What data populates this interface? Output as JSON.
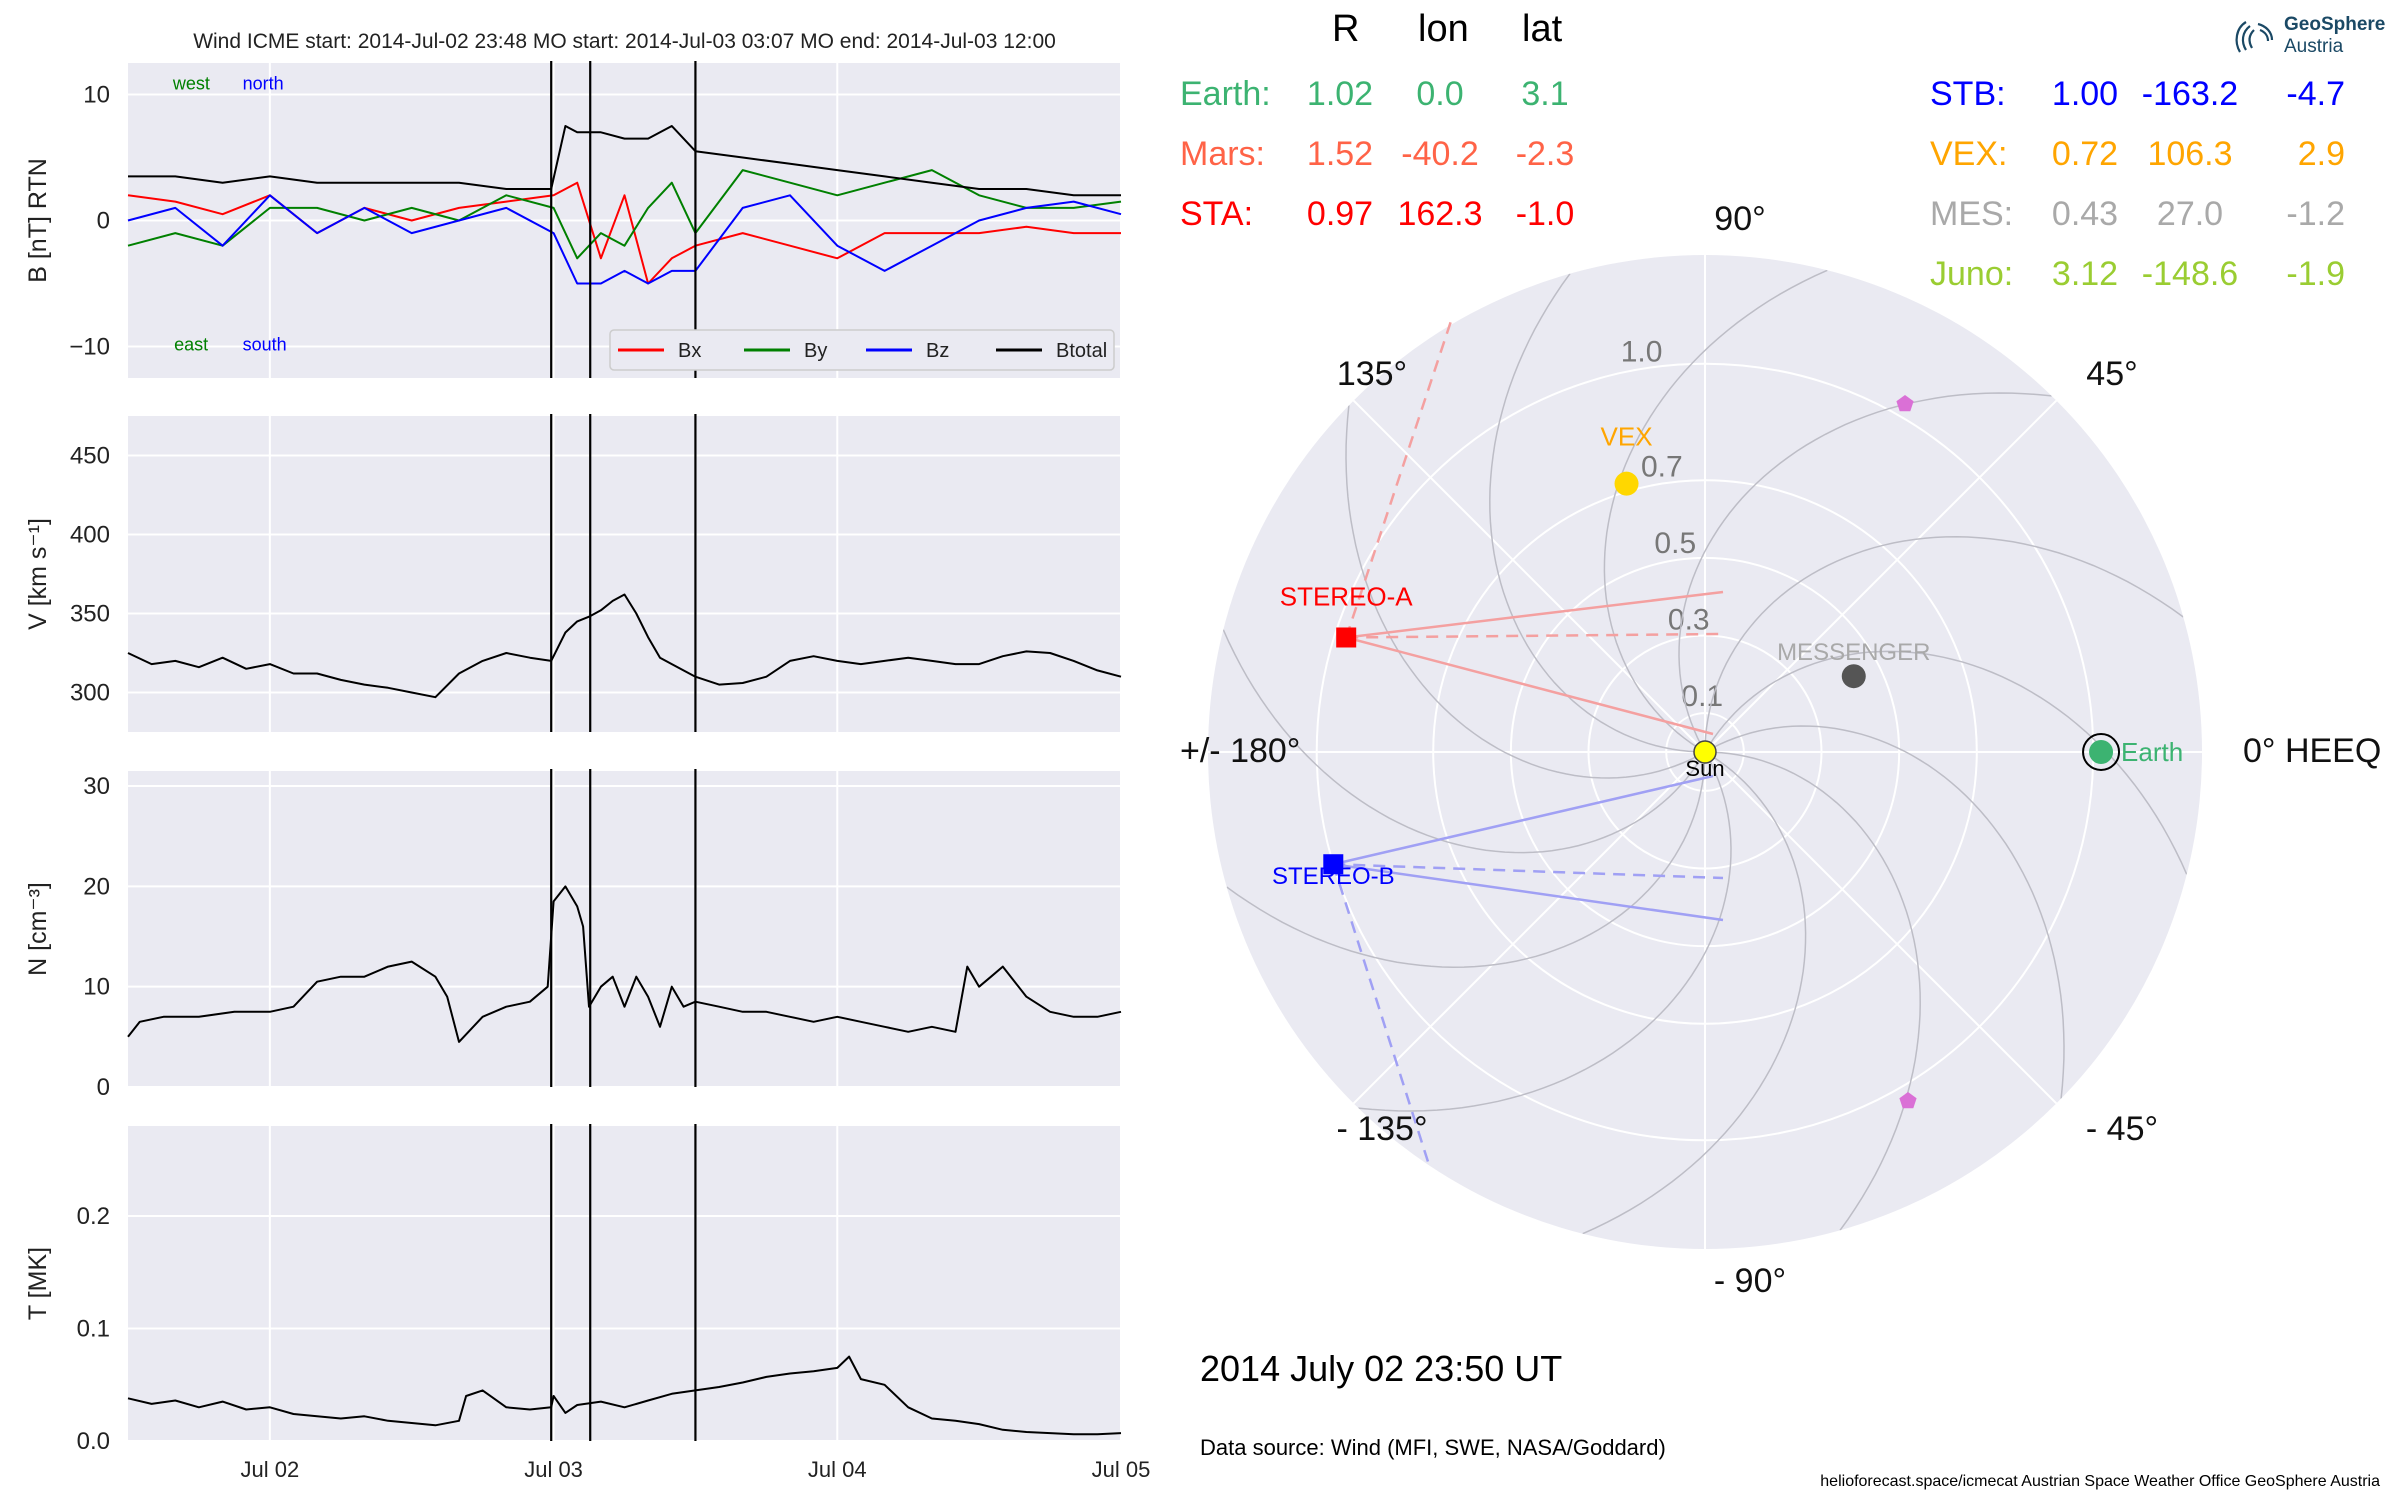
{
  "chart_data": [
    {
      "type": "line",
      "title": "Wind    ICME start: 2014-Jul-02 23:48   MO start: 2014-Jul-03 03:07   MO end: 2014-Jul-03 12:00",
      "ylabel": "B [nT] RTN",
      "ylim": [
        -12.5,
        12.5
      ],
      "yticks": [
        10,
        0,
        -10
      ],
      "ytick_labels": [
        "10",
        "0",
        "−10"
      ],
      "xlim": [
        0,
        84
      ],
      "grid": true,
      "legend_position": "lower-right",
      "annotations": [
        {
          "text": "west",
          "color": "#008000",
          "x": 3.8,
          "y": 10.4
        },
        {
          "text": "north",
          "color": "#0000ff",
          "x": 9.7,
          "y": 10.4
        },
        {
          "text": "east",
          "color": "#008000",
          "x": 3.9,
          "y": -10.3
        },
        {
          "text": "south",
          "color": "#0000ff",
          "x": 9.7,
          "y": -10.3
        }
      ],
      "event_lines": [
        35.8,
        39.1,
        48.0
      ],
      "series": [
        {
          "name": "Bx",
          "color": "#ff0000",
          "x": [
            0,
            4,
            8,
            12,
            16,
            20,
            24,
            28,
            32,
            36,
            38,
            40,
            42,
            44,
            46,
            48,
            52,
            56,
            60,
            64,
            68,
            72,
            76,
            80,
            84
          ],
          "values": [
            2,
            1.5,
            0.5,
            2,
            -1,
            1,
            0,
            1,
            1.5,
            2,
            3,
            -3,
            2,
            -5,
            -3,
            -2,
            -1,
            -2,
            -3,
            -1,
            -1,
            -1,
            -0.5,
            -1,
            -1
          ]
        },
        {
          "name": "By",
          "color": "#008000",
          "x": [
            0,
            4,
            8,
            12,
            16,
            20,
            24,
            28,
            32,
            36,
            38,
            40,
            42,
            44,
            46,
            48,
            52,
            56,
            60,
            64,
            68,
            72,
            76,
            80,
            84
          ],
          "values": [
            -2,
            -1,
            -2,
            1,
            1,
            0,
            1,
            0,
            2,
            1,
            -3,
            -1,
            -2,
            1,
            3,
            -1,
            4,
            3,
            2,
            3,
            4,
            2,
            1,
            1,
            1.5
          ]
        },
        {
          "name": "Bz",
          "color": "#0000ff",
          "x": [
            0,
            4,
            8,
            12,
            16,
            20,
            24,
            28,
            32,
            36,
            38,
            40,
            42,
            44,
            46,
            48,
            52,
            56,
            60,
            64,
            68,
            72,
            76,
            80,
            84
          ],
          "values": [
            0,
            1,
            -2,
            2,
            -1,
            1,
            -1,
            0,
            1,
            -1,
            -5,
            -5,
            -4,
            -5,
            -4,
            -4,
            1,
            2,
            -2,
            -4,
            -2,
            0,
            1,
            1.5,
            0.5
          ]
        },
        {
          "name": "Btotal",
          "color": "#000000",
          "x": [
            0,
            4,
            8,
            12,
            16,
            20,
            24,
            28,
            32,
            35.8,
            37,
            38,
            40,
            42,
            44,
            46,
            48,
            52,
            56,
            60,
            64,
            68,
            72,
            76,
            80,
            84
          ],
          "values": [
            3.5,
            3.5,
            3,
            3.5,
            3,
            3,
            3,
            3,
            2.5,
            2.5,
            7.5,
            7,
            7,
            6.5,
            6.5,
            7.5,
            5.5,
            5,
            4.5,
            4,
            3.5,
            3,
            2.5,
            2.5,
            2,
            2
          ]
        }
      ]
    },
    {
      "type": "line",
      "ylabel": "V [km s⁻¹]",
      "ylim": [
        275,
        475
      ],
      "yticks": [
        450,
        400,
        350,
        300
      ],
      "xlim": [
        0,
        84
      ],
      "grid": true,
      "event_lines": [
        35.8,
        39.1,
        48.0
      ],
      "series": [
        {
          "name": "",
          "color": "#000000",
          "x": [
            0,
            2,
            4,
            6,
            8,
            10,
            12,
            14,
            16,
            18,
            20,
            22,
            24,
            26,
            28,
            30,
            32,
            34,
            35.8,
            37,
            38,
            39,
            40,
            41,
            42,
            43,
            44,
            45,
            46,
            48,
            50,
            52,
            54,
            56,
            58,
            60,
            62,
            64,
            66,
            68,
            70,
            72,
            74,
            76,
            78,
            80,
            82,
            84
          ],
          "values": [
            325,
            318,
            320,
            316,
            322,
            315,
            318,
            312,
            312,
            308,
            305,
            303,
            300,
            297,
            312,
            320,
            325,
            322,
            320,
            338,
            345,
            348,
            352,
            358,
            362,
            350,
            335,
            322,
            318,
            310,
            305,
            306,
            310,
            320,
            323,
            320,
            318,
            320,
            322,
            320,
            318,
            318,
            323,
            326,
            325,
            320,
            314,
            310
          ]
        }
      ]
    },
    {
      "type": "line",
      "ylabel": "N [cm⁻³]",
      "ylim": [
        0,
        31.5
      ],
      "yticks": [
        30,
        20,
        10,
        0
      ],
      "xlim": [
        0,
        84
      ],
      "grid": true,
      "event_lines": [
        35.8,
        39.1,
        48.0
      ],
      "series": [
        {
          "name": "",
          "color": "#000000",
          "x": [
            0,
            1,
            3,
            6,
            9,
            12,
            14,
            16,
            18,
            20,
            22,
            24,
            26,
            27,
            28,
            30,
            32,
            34,
            35.5,
            36,
            37,
            38,
            38.5,
            39,
            40,
            41,
            42,
            43,
            44,
            45,
            46,
            47,
            48,
            50,
            52,
            54,
            56,
            58,
            60,
            62,
            64,
            66,
            68,
            70,
            71,
            72,
            73,
            74,
            76,
            78,
            80,
            82,
            84
          ],
          "values": [
            5,
            6.5,
            7,
            7,
            7.5,
            7.5,
            8,
            10.5,
            11,
            11,
            12,
            12.5,
            11,
            9,
            4.5,
            7,
            8,
            8.5,
            10,
            18.5,
            20,
            18,
            16,
            8,
            10,
            11,
            8,
            11,
            9,
            6,
            10,
            8,
            8.5,
            8,
            7.5,
            7.5,
            7,
            6.5,
            7,
            6.5,
            6,
            5.5,
            6,
            5.5,
            12,
            10,
            11,
            12,
            9,
            7.5,
            7,
            7,
            7.5
          ]
        }
      ]
    },
    {
      "type": "line",
      "ylabel": "T [MK]",
      "ylim": [
        0,
        0.28
      ],
      "yticks": [
        0.2,
        0.1,
        0.0
      ],
      "xlim": [
        0,
        84
      ],
      "grid": true,
      "event_lines": [
        35.8,
        39.1,
        48.0
      ],
      "series": [
        {
          "name": "",
          "color": "#000000",
          "x": [
            0,
            2,
            4,
            6,
            8,
            10,
            12,
            14,
            16,
            18,
            20,
            22,
            24,
            26,
            28,
            28.6,
            30,
            32,
            34,
            35.8,
            36,
            37,
            38,
            40,
            42,
            44,
            46,
            48,
            50,
            52,
            54,
            56,
            58,
            60,
            61,
            62,
            64,
            66,
            68,
            70,
            72,
            74,
            76,
            78,
            80,
            82,
            84
          ],
          "values": [
            0.038,
            0.033,
            0.036,
            0.03,
            0.035,
            0.028,
            0.03,
            0.024,
            0.022,
            0.02,
            0.022,
            0.018,
            0.016,
            0.014,
            0.018,
            0.04,
            0.045,
            0.03,
            0.028,
            0.03,
            0.04,
            0.025,
            0.032,
            0.035,
            0.03,
            0.036,
            0.042,
            0.045,
            0.048,
            0.052,
            0.057,
            0.06,
            0.062,
            0.065,
            0.075,
            0.055,
            0.05,
            0.03,
            0.02,
            0.018,
            0.015,
            0.01,
            0.008,
            0.007,
            0.006,
            0.006,
            0.007
          ]
        }
      ]
    }
  ],
  "xaxis": {
    "ticks": [
      12,
      36,
      60,
      84
    ],
    "tick_labels": [
      "Jul 02",
      "Jul 03",
      "Jul 04",
      "Jul 05"
    ]
  },
  "legend": [
    {
      "label": "Bx",
      "color": "#ff0000"
    },
    {
      "label": "By",
      "color": "#008000"
    },
    {
      "label": "Bz",
      "color": "#0000ff"
    },
    {
      "label": "Btotal",
      "color": "#000000"
    }
  ],
  "table": {
    "headers": [
      "R",
      "lon",
      "lat"
    ],
    "left": [
      {
        "name": "Earth:",
        "R": "1.02",
        "lon": "0.0",
        "lat": "3.1",
        "color": "#3cb371"
      },
      {
        "name": "Mars:",
        "R": "1.52",
        "lon": "-40.2",
        "lat": "-2.3",
        "color": "#ff6347"
      },
      {
        "name": "STA:",
        "R": "0.97",
        "lon": "162.3",
        "lat": "-1.0",
        "color": "#ff0000"
      }
    ],
    "right": [
      {
        "name": "STB:",
        "R": "1.00",
        "lon": "-163.2",
        "lat": "-4.7",
        "color": "#0000ff"
      },
      {
        "name": "VEX:",
        "R": "0.72",
        "lon": "106.3",
        "lat": "2.9",
        "color": "#ffa500"
      },
      {
        "name": "MES:",
        "R": "0.43",
        "lon": "27.0",
        "lat": "-1.2",
        "color": "#a9a9a9"
      },
      {
        "name": "Juno:",
        "R": "3.12",
        "lon": "-148.6",
        "lat": "-1.9",
        "color": "#9acd32"
      }
    ]
  },
  "polar": {
    "rmax": 1.28,
    "rings": [
      0.1,
      0.3,
      0.5,
      0.7,
      1.0
    ],
    "ring_labels": [
      "0.1",
      "0.3",
      "0.5",
      "0.7",
      "1.0"
    ],
    "angle_labels": {
      "a0": "0° HEEQ",
      "a45": "45°",
      "a90": "90°",
      "a135": "135°",
      "a180": "+/- 180°",
      "am135": "- 135°",
      "am90": "- 90°",
      "am45": "- 45°"
    },
    "bodies": [
      {
        "name": "Sun",
        "label": "Sun",
        "r": 0.0,
        "lon": 0,
        "color": "#ffff00",
        "marker": "circle",
        "label_color": "#000000"
      },
      {
        "name": "Earth",
        "label": "Earth",
        "r": 1.02,
        "lon": 0.0,
        "color": "#3cb371",
        "marker": "circle-ring",
        "label_color": "#3cb371"
      },
      {
        "name": "VEX",
        "label": "VEX",
        "r": 0.72,
        "lon": 106.3,
        "color": "#ffd700",
        "marker": "circle",
        "label_color": "#ffa500"
      },
      {
        "name": "MESSENGER",
        "label": "MESSENGER",
        "r": 0.43,
        "lon": 27.0,
        "color": "#555555",
        "marker": "circle",
        "label_color": "#a9a9a9"
      },
      {
        "name": "STEREO-A",
        "label": "STEREO-A",
        "r": 0.97,
        "lon": 162.3,
        "color": "#ff0000",
        "marker": "square",
        "label_color": "#ff0000"
      },
      {
        "name": "STEREO-B",
        "label": "STEREO-B",
        "r": 1.0,
        "lon": -163.2,
        "color": "#0000ff",
        "marker": "square",
        "label_color": "#0000ff"
      },
      {
        "name": "Mars",
        "label": "",
        "r": 1.52,
        "lon": -40.2,
        "color": "#da70d6",
        "marker": "pentagon"
      },
      {
        "name": "Juno",
        "label": "",
        "r": 3.12,
        "lon": -148.6,
        "color": "#da70d6",
        "marker": "pentagon"
      },
      {
        "name": "Mars-pos",
        "label": "",
        "r": 0.79,
        "lon": 45.5,
        "color": "#da70d6",
        "marker": "pentagon"
      },
      {
        "name": "Mars-neg",
        "label": "",
        "r": 0.79,
        "lon": -45.8,
        "color": "#da70d6",
        "marker": "pentagon"
      }
    ]
  },
  "date_label": "2014 July 02  23:50 UT",
  "data_source": "Data source: Wind (MFI, SWE, NASA/Goddard)",
  "footer": "helioforecast.space/icmecat   Austrian Space Weather Office   GeoSphere Austria",
  "logo": {
    "line1": "GeoSphere",
    "line2": "Austria",
    "color": "#1b4965"
  }
}
